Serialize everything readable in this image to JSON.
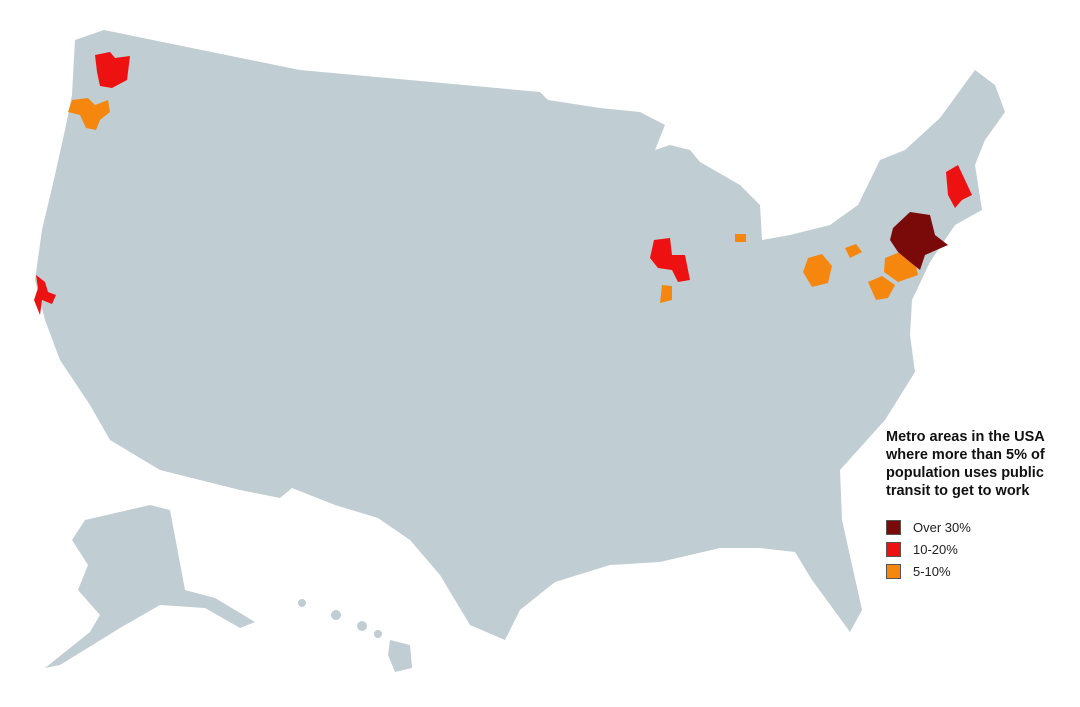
{
  "legend": {
    "title": "Metro areas in the USA where more than 5% of population uses public transit to get to work",
    "items": [
      {
        "label": "Over 30%",
        "color": "#7a0a0a"
      },
      {
        "label": "10-20%",
        "color": "#ee1111"
      },
      {
        "label": "5-10%",
        "color": "#f5870f"
      }
    ]
  },
  "colors": {
    "land": "#c0cdd2",
    "background": "#ffffff"
  }
}
